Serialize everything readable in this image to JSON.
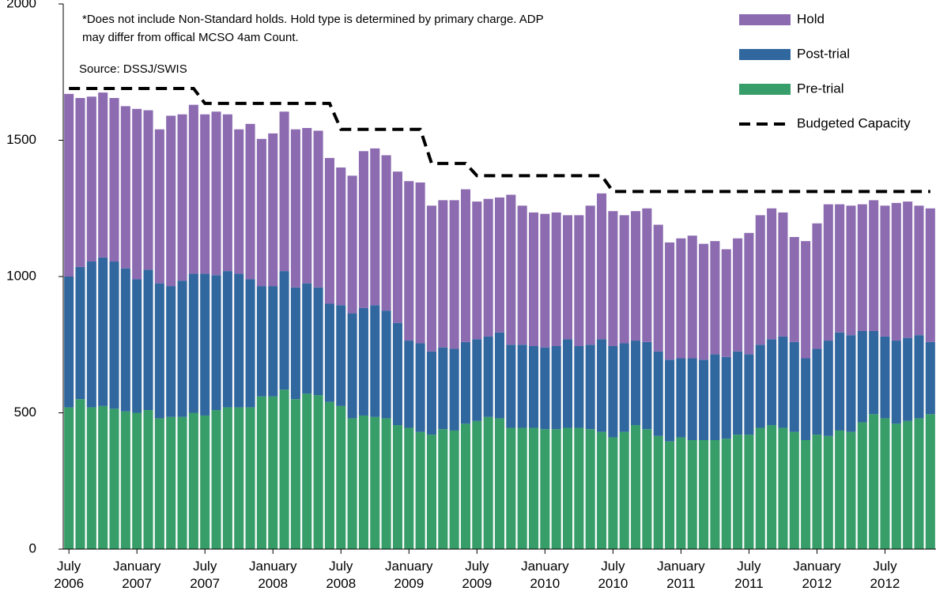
{
  "chart_data": {
    "type": "stacked_bar",
    "annotations": [
      "*Does not include Non-Standard holds. Hold type is determined by primary charge. ADP",
      "may differ from offical MCSO 4am Count."
    ],
    "source": "Source: DSSJ/SWIS",
    "categories": [
      "July 2006",
      null,
      null,
      null,
      null,
      null,
      "January 2007",
      null,
      null,
      null,
      null,
      null,
      "July 2007",
      null,
      null,
      null,
      null,
      null,
      "January 2008",
      null,
      null,
      null,
      null,
      null,
      "July 2008",
      null,
      null,
      null,
      null,
      null,
      "January 2009",
      null,
      null,
      null,
      null,
      null,
      "July 2009",
      null,
      null,
      null,
      null,
      null,
      "January 2010",
      null,
      null,
      null,
      null,
      null,
      "July 2010",
      null,
      null,
      null,
      null,
      null,
      "January 2011",
      null,
      null,
      null,
      null,
      null,
      "July 2011",
      null,
      null,
      null,
      null,
      null,
      "January 2012",
      null,
      null,
      null,
      null,
      null,
      "July 2012",
      null,
      null,
      null,
      null
    ],
    "ylim": [
      0,
      2000
    ],
    "yticks": [
      0,
      500,
      1000,
      1500,
      2000
    ],
    "grid": false,
    "legend": "top-right",
    "series": [
      {
        "name": "Pre-trial",
        "color": "#379d69",
        "values": [
          520,
          550,
          520,
          525,
          515,
          505,
          500,
          510,
          480,
          485,
          485,
          500,
          490,
          510,
          520,
          520,
          520,
          560,
          560,
          585,
          550,
          570,
          565,
          540,
          525,
          480,
          490,
          485,
          480,
          455,
          445,
          430,
          420,
          440,
          435,
          460,
          470,
          485,
          480,
          445,
          445,
          445,
          440,
          440,
          445,
          445,
          440,
          430,
          410,
          430,
          455,
          440,
          415,
          395,
          410,
          400,
          400,
          400,
          405,
          420,
          420,
          445,
          455,
          445,
          430,
          400,
          420,
          415,
          435,
          430,
          465,
          495,
          480,
          460,
          470,
          480,
          495
        ]
      },
      {
        "name": "Post-trial",
        "color": "#31679f",
        "values": [
          480,
          485,
          535,
          545,
          540,
          525,
          490,
          515,
          495,
          480,
          500,
          510,
          520,
          495,
          500,
          490,
          470,
          405,
          405,
          435,
          410,
          405,
          395,
          360,
          370,
          385,
          395,
          410,
          395,
          375,
          320,
          325,
          305,
          300,
          300,
          300,
          300,
          295,
          315,
          305,
          305,
          300,
          300,
          305,
          325,
          300,
          310,
          340,
          335,
          325,
          310,
          320,
          310,
          300,
          290,
          300,
          295,
          315,
          300,
          305,
          295,
          305,
          315,
          335,
          330,
          300,
          315,
          350,
          360,
          355,
          335,
          305,
          300,
          305,
          305,
          305,
          265
        ]
      },
      {
        "name": "Hold",
        "color": "#8c6bb1",
        "values": [
          670,
          620,
          605,
          605,
          600,
          595,
          625,
          585,
          565,
          625,
          610,
          620,
          585,
          600,
          575,
          530,
          570,
          540,
          560,
          585,
          580,
          570,
          575,
          535,
          505,
          505,
          575,
          575,
          570,
          555,
          585,
          590,
          535,
          540,
          545,
          560,
          505,
          505,
          495,
          550,
          510,
          490,
          490,
          490,
          455,
          480,
          510,
          535,
          495,
          470,
          475,
          490,
          465,
          430,
          440,
          450,
          425,
          415,
          395,
          415,
          445,
          475,
          480,
          455,
          385,
          430,
          460,
          500,
          470,
          475,
          465,
          480,
          480,
          505,
          500,
          475,
          490
        ]
      },
      {
        "name": "Budgeted Capacity",
        "type": "line",
        "color": "#000000",
        "style": "dashed",
        "values": [
          1690,
          1690,
          1690,
          1690,
          1690,
          1690,
          1690,
          1690,
          1690,
          1690,
          1690,
          1690,
          1635,
          1635,
          1635,
          1635,
          1635,
          1635,
          1635,
          1635,
          1635,
          1635,
          1635,
          1635,
          1540,
          1540,
          1540,
          1540,
          1540,
          1540,
          1540,
          1540,
          1415,
          1415,
          1415,
          1415,
          1370,
          1370,
          1370,
          1370,
          1370,
          1370,
          1370,
          1370,
          1370,
          1370,
          1370,
          1370,
          1312,
          1312,
          1312,
          1312,
          1312,
          1312,
          1312,
          1312,
          1312,
          1312,
          1312,
          1312,
          1312,
          1312,
          1312,
          1312,
          1312,
          1312,
          1312,
          1312,
          1312,
          1312,
          1312,
          1312,
          1312,
          1312,
          1312,
          1312,
          1312
        ]
      }
    ]
  }
}
